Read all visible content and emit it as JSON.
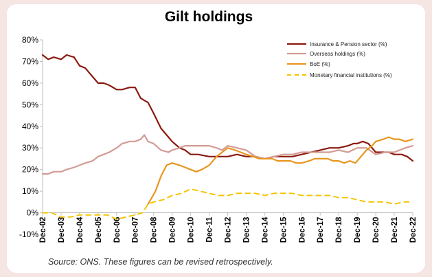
{
  "chart_data": {
    "type": "line",
    "title": "Gilt holdings",
    "xlabel": "",
    "ylabel": "",
    "ylim": [
      -10,
      80
    ],
    "yticks": [
      "80%",
      "70%",
      "60%",
      "50%",
      "40%",
      "30%",
      "20%",
      "10%",
      "0%",
      "-10%"
    ],
    "ytick_values": [
      80,
      70,
      60,
      50,
      40,
      30,
      20,
      10,
      0,
      -10
    ],
    "xlim": [
      2002.9,
      2022.9
    ],
    "xticks": [
      "Dec-02",
      "Dec-03",
      "Dec-04",
      "Dec-05",
      "Dec-06",
      "Dec-07",
      "Dec-08",
      "Dec-09",
      "Dec-10",
      "Dec-11",
      "Dec-12",
      "Dec-13",
      "Dec-14",
      "Dec-15",
      "Dec-16",
      "Dec-17",
      "Dec-18",
      "Dec-19",
      "Dec-20",
      "Dec-21",
      "Dec-22"
    ],
    "xtick_values": [
      2002.9,
      2003.9,
      2004.9,
      2005.9,
      2006.9,
      2007.9,
      2008.9,
      2009.9,
      2010.9,
      2011.9,
      2012.9,
      2013.9,
      2014.9,
      2015.9,
      2016.9,
      2017.9,
      2018.9,
      2019.9,
      2020.9,
      2021.9,
      2022.9
    ],
    "grid": false,
    "legend_position": "top-right",
    "series": [
      {
        "name": "Insurance & Pension sector (%)",
        "color": "#8b1a10",
        "dash": "solid",
        "x": [
          2002.9,
          2003.2,
          2003.5,
          2003.9,
          2004.2,
          2004.6,
          2004.9,
          2005.2,
          2005.6,
          2005.9,
          2006.2,
          2006.5,
          2006.9,
          2007.2,
          2007.6,
          2007.9,
          2008.2,
          2008.6,
          2008.9,
          2009.3,
          2009.7,
          2009.9,
          2010.3,
          2010.6,
          2010.9,
          2011.3,
          2011.9,
          2012.3,
          2012.9,
          2013.4,
          2013.9,
          2014.4,
          2014.9,
          2015.4,
          2015.9,
          2016.4,
          2016.9,
          2017.4,
          2017.9,
          2018.4,
          2018.9,
          2019.4,
          2019.7,
          2019.9,
          2020.2,
          2020.5,
          2020.9,
          2021.3,
          2021.6,
          2021.9,
          2022.3,
          2022.6,
          2022.9
        ],
        "y": [
          73,
          71,
          72,
          71,
          73,
          72,
          68,
          67,
          63,
          60,
          60,
          59,
          57,
          57,
          58,
          58,
          53,
          51,
          46,
          39,
          35,
          33,
          30,
          29,
          27,
          27,
          26,
          26,
          26,
          27,
          26,
          26,
          25,
          26,
          26,
          26,
          27,
          28,
          29,
          30,
          30,
          31,
          32,
          32,
          33,
          32,
          28,
          28,
          28,
          27,
          27,
          26,
          24
        ]
      },
      {
        "name": "Overseas holdings (%)",
        "color": "#d39b94",
        "dash": "solid",
        "x": [
          2002.9,
          2003.2,
          2003.5,
          2003.9,
          2004.2,
          2004.6,
          2004.9,
          2005.2,
          2005.6,
          2005.9,
          2006.2,
          2006.5,
          2006.9,
          2007.2,
          2007.6,
          2007.9,
          2008.2,
          2008.4,
          2008.6,
          2008.9,
          2009.3,
          2009.7,
          2009.9,
          2010.3,
          2010.6,
          2010.9,
          2011.3,
          2011.9,
          2012.3,
          2012.6,
          2012.9,
          2013.4,
          2013.9,
          2014.4,
          2014.9,
          2015.4,
          2015.9,
          2016.4,
          2016.9,
          2017.4,
          2017.9,
          2018.4,
          2018.9,
          2019.4,
          2019.9,
          2020.4,
          2020.9,
          2021.4,
          2021.9,
          2022.2,
          2022.5,
          2022.9
        ],
        "y": [
          18,
          18,
          19,
          19,
          20,
          21,
          22,
          23,
          24,
          26,
          27,
          28,
          30,
          32,
          33,
          33,
          34,
          36,
          33,
          32,
          29,
          28,
          29,
          30,
          31,
          31,
          31,
          31,
          30,
          29,
          31,
          30,
          29,
          26,
          25,
          26,
          27,
          27,
          28,
          28,
          28,
          28,
          29,
          28,
          30,
          30,
          27,
          28,
          28,
          29,
          30,
          31
        ]
      },
      {
        "name": "BoE (%)",
        "color": "#e8961f",
        "dash": "solid",
        "x": [
          2008.6,
          2009.0,
          2009.3,
          2009.6,
          2009.9,
          2010.3,
          2010.6,
          2010.9,
          2011.2,
          2011.5,
          2011.9,
          2012.3,
          2012.6,
          2012.9,
          2013.3,
          2013.6,
          2013.9,
          2014.3,
          2014.6,
          2014.9,
          2015.3,
          2015.6,
          2015.9,
          2016.3,
          2016.6,
          2016.9,
          2017.3,
          2017.6,
          2017.9,
          2018.3,
          2018.6,
          2018.9,
          2019.2,
          2019.5,
          2019.8,
          2020.1,
          2020.4,
          2020.7,
          2020.9,
          2021.3,
          2021.6,
          2021.9,
          2022.2,
          2022.5,
          2022.9
        ],
        "y": [
          4,
          10,
          17,
          22,
          23,
          22,
          21,
          20,
          19,
          20,
          22,
          26,
          28,
          30,
          29,
          28,
          27,
          26,
          25,
          25,
          25,
          24,
          24,
          24,
          23,
          23,
          24,
          25,
          25,
          25,
          24,
          24,
          23,
          24,
          23,
          26,
          29,
          31,
          33,
          34,
          35,
          34,
          34,
          33,
          34
        ]
      },
      {
        "name": "Monetary financial institutions (%)",
        "color": "#f5c400",
        "dash": "dashed",
        "x": [
          2002.9,
          2003.4,
          2003.9,
          2004.4,
          2004.9,
          2005.4,
          2005.9,
          2006.4,
          2006.9,
          2007.4,
          2007.9,
          2008.3,
          2008.6,
          2008.9,
          2009.4,
          2009.9,
          2010.4,
          2010.9,
          2011.4,
          2011.9,
          2012.4,
          2012.9,
          2013.4,
          2013.9,
          2014.4,
          2014.9,
          2015.4,
          2015.9,
          2016.4,
          2016.9,
          2017.4,
          2017.9,
          2018.4,
          2018.9,
          2019.4,
          2019.9,
          2020.4,
          2020.9,
          2021.4,
          2021.9,
          2022.4,
          2022.9
        ],
        "y": [
          0,
          0,
          -2,
          -2,
          -1,
          -1,
          -1,
          -1,
          -3,
          -2,
          -1,
          0,
          4,
          5,
          6,
          8,
          9,
          11,
          10,
          9,
          8,
          8,
          9,
          9,
          9,
          8,
          9,
          9,
          9,
          8,
          8,
          8,
          8,
          7,
          7,
          6,
          5,
          5,
          5,
          4,
          5,
          5
        ]
      }
    ]
  },
  "source_text": "Source: ONS. These figures can be revised retrospectively."
}
